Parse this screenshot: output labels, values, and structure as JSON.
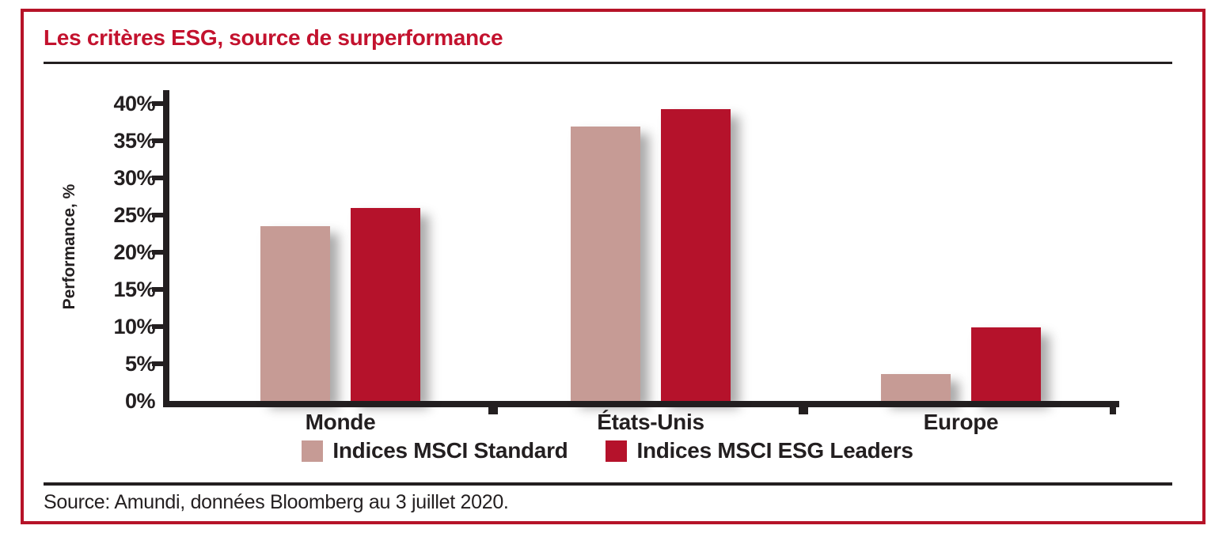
{
  "title": "Les critères ESG, source de surperformance",
  "source": "Source: Amundi, données Bloomberg au 3 juillet 2020.",
  "colors": {
    "frame_red": "#B61328",
    "title_red": "#C3122E",
    "bar_standard": "#C69B95",
    "bar_esg_leaders": "#B5122B",
    "axis_black": "#231F20"
  },
  "chart_data": {
    "type": "bar",
    "title": "Les critères ESG, source de surperformance",
    "categories": [
      "Monde",
      "États-Unis",
      "Europe"
    ],
    "series": [
      {
        "name": "Indices MSCI Standard",
        "color": "#C69B95",
        "values": [
          23.5,
          36.9,
          3.6
        ]
      },
      {
        "name": "Indices MSCI ESG Leaders",
        "color": "#B5122B",
        "values": [
          26.0,
          39.3,
          9.9
        ]
      }
    ],
    "xlabel": "",
    "ylabel": "Performance, %",
    "ylim": [
      0,
      40
    ],
    "ytick_step": 5,
    "yticks": [
      "0%",
      "5%",
      "10%",
      "15%",
      "20%",
      "25%",
      "30%",
      "35%",
      "40%"
    ],
    "grid": false,
    "legend_position": "bottom"
  }
}
